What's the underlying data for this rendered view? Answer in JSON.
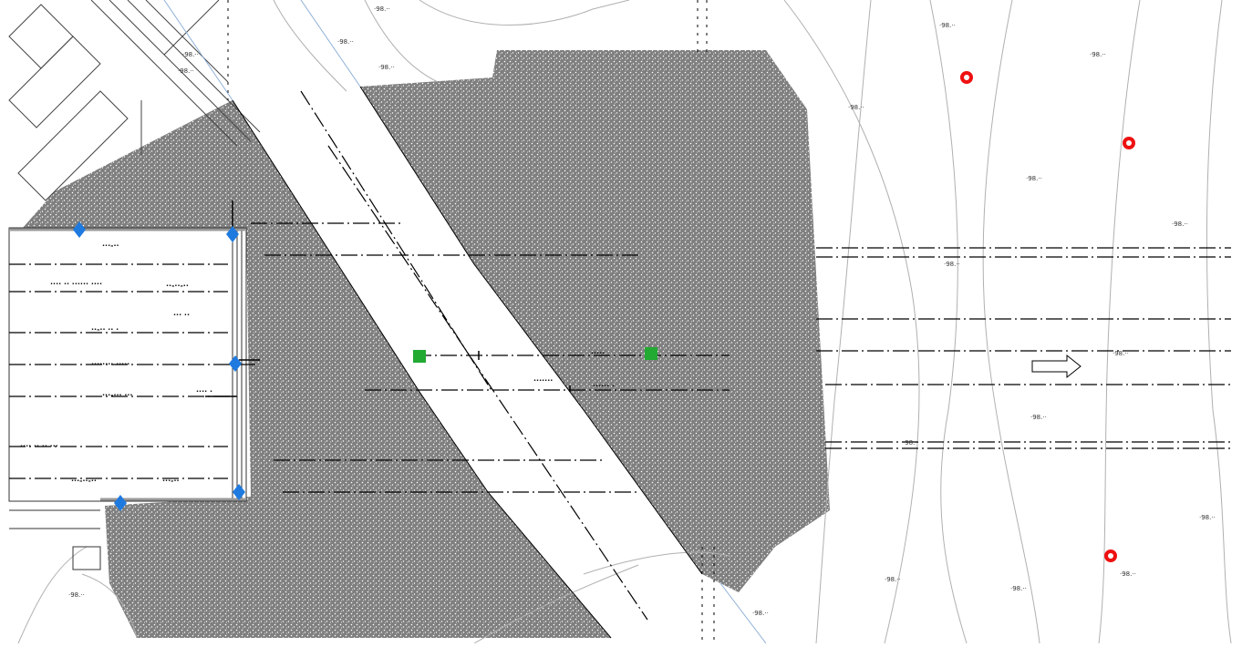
{
  "drawing": {
    "colors": {
      "background": "#ffffff",
      "hatch": "#7f7f7f",
      "line": "#000000",
      "contour": "#b0b0b0",
      "benchmark_marker": "#ee1111",
      "vertex_marker": "#1f7ae0",
      "grip_marker": "#22aa33"
    },
    "icons": {
      "benchmark": "red-circle-marker-icon",
      "vertex": "blue-diamond-marker-icon",
      "grip": "green-square-grip-icon",
      "direction": "direction-arrow-icon"
    },
    "elevation_labels": [
      "·98.··",
      "·98.··",
      "·98.··",
      "·98.··",
      "·98.··",
      "·98.··",
      "·98.··",
      "·98.··",
      "·98.··",
      "·98.··",
      "·98.··",
      "·98.··",
      "·98.··",
      "·98.··",
      "·98.··",
      "·98.··",
      "·98.··",
      "·98.··",
      "·98.··",
      "·98.··"
    ],
    "annotations": [
      "···-··",
      "···· ·· ······ ····",
      "··-··-··",
      "··· ··",
      "··-·· ·· ·",
      "········ ·····",
      "···-··· ···",
      "···· ·· ·· ···",
      "···-··-··",
      "···-··",
      "·····",
      "······ ·",
      "·······",
      "···· ·"
    ]
  }
}
